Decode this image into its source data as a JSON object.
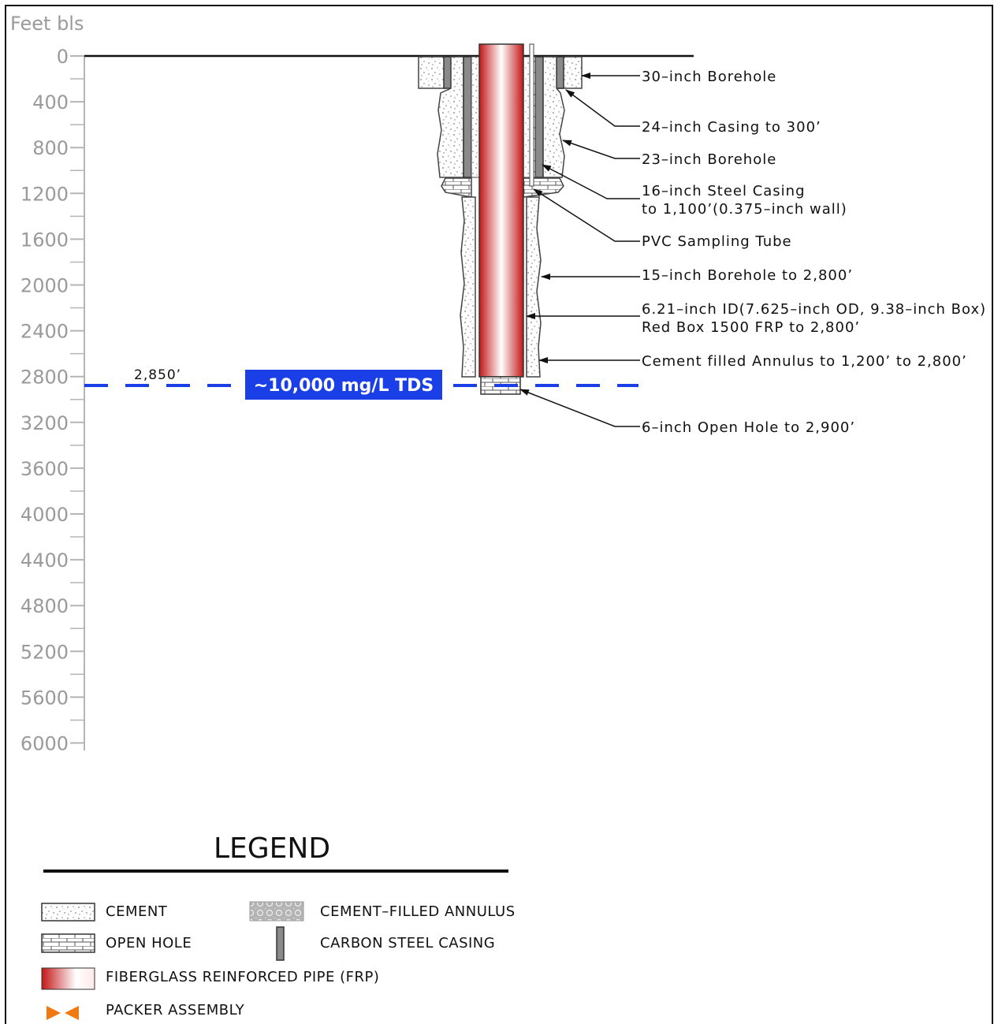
{
  "diagram": {
    "axis_unit": "Feet  bls",
    "depth_ticks": [
      "0",
      "400",
      "800",
      "1200",
      "1600",
      "2000",
      "2400",
      "2800",
      "3200",
      "3600",
      "4000",
      "4400",
      "4800",
      "5200",
      "5600",
      "6000"
    ],
    "water_level": {
      "depth_label": "2,850’",
      "tds_label": "~10,000 mg/L TDS",
      "color": "#1a3fe6"
    },
    "annotations": [
      "30–inch  Borehole",
      "24–inch  Casing  to  300’",
      "23–inch  Borehole",
      "16–inch  Steel  Casing",
      "to  1,100’(0.375–inch  wall)",
      "PVC  Sampling  Tube",
      "15–inch  Borehole  to  2,800’",
      "6.21–inch  ID(7.625–inch  OD,  9.38–inch  Box)",
      "Red  Box  1500  FRP  to  2,800’",
      "Cement  filled  Annulus  to  1,200’  to  2,800’",
      "6–inch  Open  Hole  to  2,900’"
    ]
  },
  "legend": {
    "title": "LEGEND",
    "items": {
      "cement": "CEMENT",
      "cement_filled_annulus": "CEMENT–FILLED  ANNULUS",
      "open_hole": "OPEN  HOLE",
      "carbon_steel_casing": "CARBON  STEEL  CASING",
      "frp": "FIBERGLASS  REINFORCED  PIPE  (FRP)",
      "packer": "PACKER  ASSEMBLY"
    },
    "colors": {
      "frp_red": "#d42020",
      "packer_orange": "#f07a10",
      "casing_gray": "#8a8a8a"
    }
  }
}
